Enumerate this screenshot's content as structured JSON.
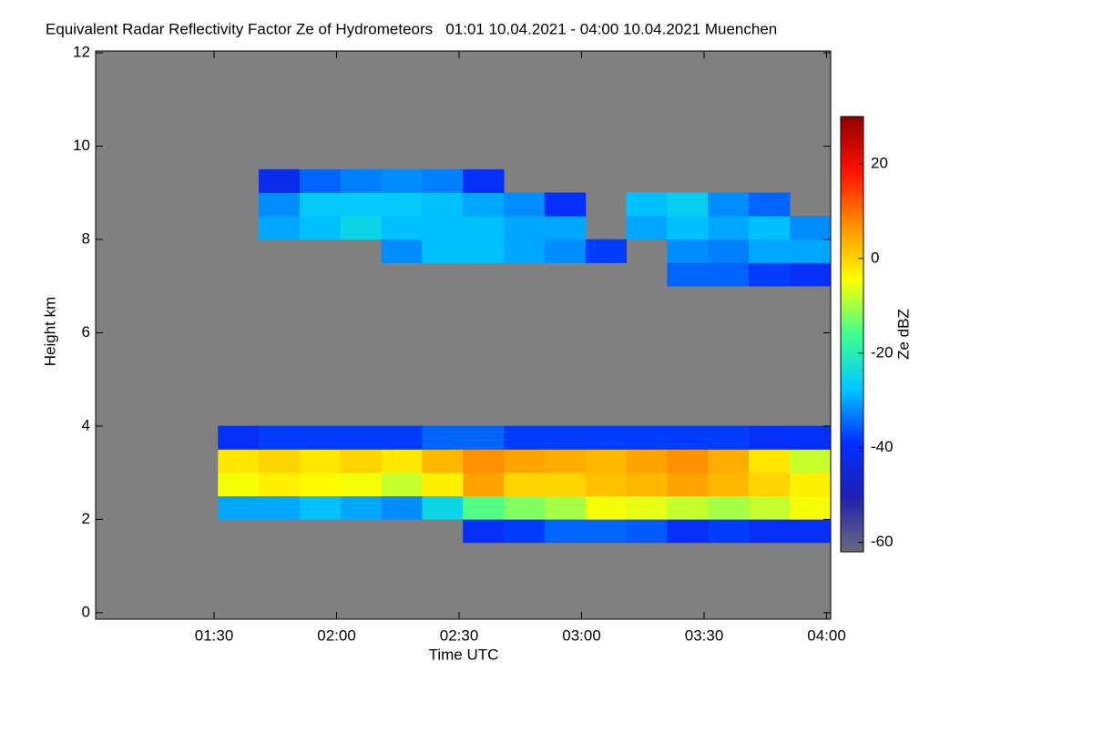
{
  "chart_data": {
    "type": "heatmap",
    "title": "Equivalent Radar Reflectivity Factor Ze of Hydrometeors   01:01 10.04.2021 - 04:00 10.04.2021 Muenchen",
    "x_label": "Time UTC",
    "y_label": "Height km",
    "colorbar_label": "Ze dBZ",
    "xlim": [
      61,
      241
    ],
    "xticks": [
      {
        "value": 90,
        "label": "01:30"
      },
      {
        "value": 120,
        "label": "02:00"
      },
      {
        "value": 150,
        "label": "02:30"
      },
      {
        "value": 180,
        "label": "03:00"
      },
      {
        "value": 210,
        "label": "03:30"
      },
      {
        "value": 240,
        "label": "04:00"
      }
    ],
    "ylim": [
      -0.14,
      12.04
    ],
    "yticks": [
      0,
      2,
      4,
      6,
      8,
      10,
      12
    ],
    "zlim": [
      -62,
      30
    ],
    "zticks": [
      20,
      0,
      -20,
      -40,
      -60
    ],
    "background": "#808080",
    "colormap": [
      "#6a6a7a",
      "#2020b0",
      "#0030ff",
      "#00c8ff",
      "#40ff90",
      "#ffff00",
      "#ff9000",
      "#ff1000",
      "#900000"
    ],
    "x": [
      66,
      76,
      86,
      96,
      106,
      116,
      126,
      136,
      146,
      156,
      166,
      176,
      186,
      196,
      206,
      216,
      226,
      236
    ],
    "y": [
      1.75,
      2.25,
      2.75,
      3.25,
      3.75,
      7.25,
      7.75,
      8.25,
      8.75,
      9.25
    ],
    "values": [
      [
        null,
        null,
        null,
        null,
        null,
        null,
        null,
        null,
        null,
        -40,
        -38,
        -35,
        -35,
        -36,
        -40,
        -38,
        -40,
        -40
      ],
      [
        null,
        null,
        null,
        -30,
        -30,
        -28,
        -30,
        -32,
        -25,
        -15,
        -12,
        -10,
        -5,
        -6,
        -8,
        -10,
        -8,
        -5
      ],
      [
        null,
        null,
        null,
        -5,
        -3,
        -4,
        -5,
        -8,
        -3,
        5,
        0,
        0,
        2,
        3,
        5,
        3,
        0,
        -3
      ],
      [
        null,
        null,
        null,
        -2,
        0,
        -2,
        0,
        -2,
        3,
        7,
        5,
        4,
        3,
        5,
        7,
        4,
        -2,
        -8
      ],
      [
        null,
        null,
        null,
        -40,
        -38,
        -38,
        -38,
        -38,
        -35,
        -35,
        -38,
        -38,
        -38,
        -38,
        -38,
        -38,
        -40,
        -40
      ],
      [
        null,
        null,
        null,
        null,
        null,
        null,
        null,
        null,
        null,
        null,
        null,
        null,
        null,
        null,
        -35,
        -35,
        -38,
        -40
      ],
      [
        null,
        null,
        null,
        null,
        null,
        null,
        null,
        -32,
        -28,
        -28,
        -30,
        -32,
        -38,
        null,
        -32,
        -33,
        -30,
        -30
      ],
      [
        null,
        null,
        null,
        null,
        -30,
        -28,
        -25,
        -28,
        -28,
        -28,
        -30,
        -30,
        null,
        -30,
        -28,
        -30,
        -28,
        -32
      ],
      [
        null,
        null,
        null,
        null,
        -32,
        -27,
        -27,
        -27,
        -28,
        -30,
        -32,
        -40,
        null,
        -28,
        -26,
        -32,
        -35,
        null
      ],
      [
        null,
        null,
        null,
        null,
        -42,
        -35,
        -33,
        -32,
        -33,
        -40,
        null,
        null,
        null,
        null,
        null,
        null,
        null,
        null
      ]
    ]
  }
}
